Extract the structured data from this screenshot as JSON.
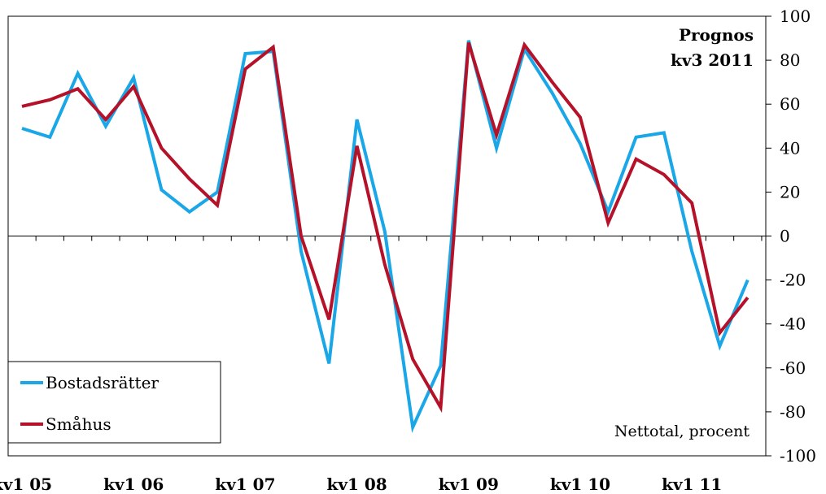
{
  "chart_data": {
    "type": "line",
    "title": "",
    "annotation": [
      "Prognos",
      "kv3 2011"
    ],
    "unit_note": "Nettotal, procent",
    "xlabel": "",
    "ylabel": "",
    "ylim": [
      -100,
      100
    ],
    "y_ticks": [
      "100",
      "80",
      "60",
      "40",
      "20",
      "0",
      "-20",
      "-40",
      "-60",
      "-80",
      "-100"
    ],
    "x_tick_labels": [
      "kv1 05",
      "kv1 06",
      "kv1 07",
      "kv1 08",
      "kv1 09",
      "kv1 10",
      "kv1 11"
    ],
    "x": [
      "kv1 05",
      "kv2 05",
      "kv3 05",
      "kv4 05",
      "kv1 06",
      "kv2 06",
      "kv3 06",
      "kv4 06",
      "kv1 07",
      "kv2 07",
      "kv3 07",
      "kv4 07",
      "kv1 08",
      "kv2 08",
      "kv3 08",
      "kv4 08",
      "kv1 09",
      "kv2 09",
      "kv3 09",
      "kv4 09",
      "kv1 10",
      "kv2 10",
      "kv3 10",
      "kv4 10",
      "kv1 11",
      "kv2 11",
      "kv3 11"
    ],
    "grid": false,
    "legend_position": "bottom-left",
    "series": [
      {
        "name": "Bostadsrätter",
        "color": "#1aa7e8",
        "values": [
          49,
          45,
          74,
          50,
          72,
          21,
          11,
          20,
          83,
          84,
          -7,
          -58,
          53,
          2,
          -87,
          -59,
          89,
          40,
          85,
          65,
          42,
          11,
          45,
          47,
          -7,
          -50,
          -20
        ]
      },
      {
        "name": "Småhus",
        "color": "#b5122a",
        "values": [
          59,
          62,
          67,
          53,
          68,
          40,
          26,
          14,
          76,
          86,
          0,
          -38,
          41,
          -13,
          -56,
          -78,
          88,
          46,
          87,
          70,
          54,
          6,
          35,
          28,
          15,
          -44,
          -28
        ]
      }
    ]
  }
}
